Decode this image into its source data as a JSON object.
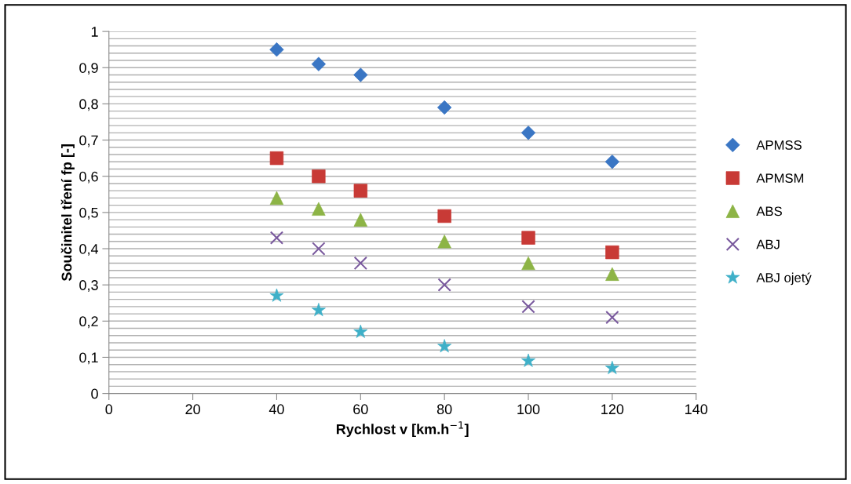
{
  "chart_data": {
    "type": "scatter",
    "xlabel": "Rychlost v [km.h$^{−1}$]",
    "ylabel": "Součinitel tření fp [-]",
    "xlim": [
      0,
      140
    ],
    "xticks": [
      0,
      20,
      40,
      60,
      80,
      100,
      120,
      140
    ],
    "ylim": [
      0,
      1
    ],
    "yticks": [
      0,
      {
        "value": 0.1,
        "label": "0,1"
      },
      {
        "value": 0.2,
        "label": "0,2"
      },
      {
        "value": 0.3,
        "label": "0,3"
      },
      {
        "value": 0.4,
        "label": "0,4"
      },
      {
        "value": 0.5,
        "label": "0,5"
      },
      {
        "value": 0.6,
        "label": "0,6"
      },
      {
        "value": 0.7,
        "label": "0,7"
      },
      {
        "value": 0.8,
        "label": "0,8"
      },
      {
        "value": 0.9,
        "label": "0,9"
      },
      1
    ],
    "x": [
      40,
      50,
      60,
      80,
      100,
      120
    ],
    "grid": "y",
    "legend": "right",
    "series": [
      {
        "name": "APMSS",
        "color": "#3a76c4",
        "marker": "diamond",
        "values": [
          0.95,
          0.91,
          0.88,
          0.79,
          0.72,
          0.64
        ]
      },
      {
        "name": "APMSM",
        "color": "#c83a36",
        "marker": "square",
        "values": [
          0.65,
          0.6,
          0.56,
          0.49,
          0.43,
          0.39
        ]
      },
      {
        "name": "ABS",
        "color": "#8db446",
        "marker": "triangle",
        "values": [
          0.54,
          0.51,
          0.48,
          0.42,
          0.36,
          0.33
        ]
      },
      {
        "name": "ABJ",
        "color": "#7a5a9e",
        "marker": "cross",
        "values": [
          0.43,
          0.4,
          0.36,
          0.3,
          0.24,
          0.21
        ]
      },
      {
        "name": "ABJ ojetý",
        "color": "#3fb0c8",
        "marker": "star",
        "values": [
          0.27,
          0.23,
          0.17,
          0.13,
          0.09,
          0.07
        ]
      }
    ]
  }
}
